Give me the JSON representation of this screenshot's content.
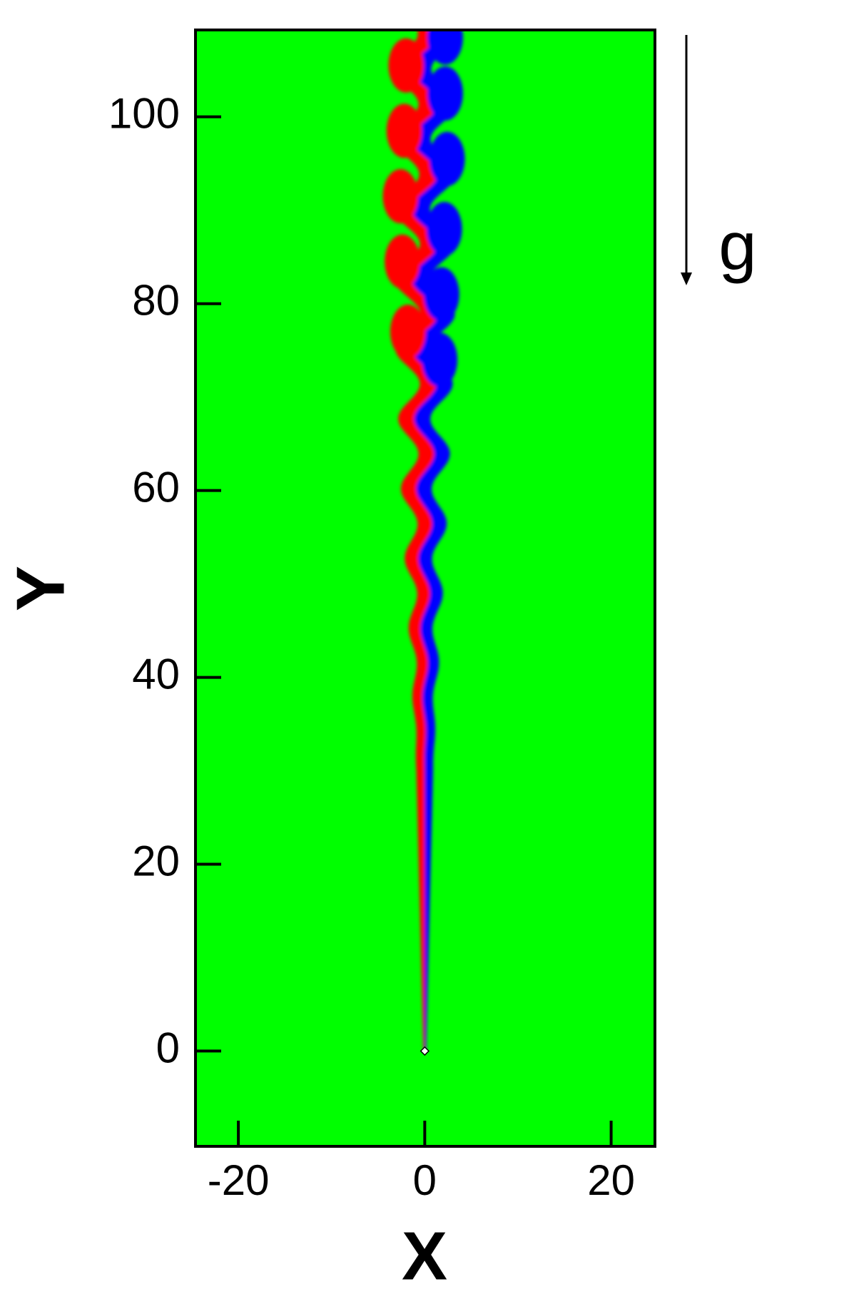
{
  "chart_data": {
    "type": "contour",
    "xlabel": "X",
    "ylabel": "Y",
    "annotation": "g",
    "xlim": [
      -24.6,
      24.7
    ],
    "ylim": [
      -10.2,
      109.3
    ],
    "xticks": [
      -20,
      0,
      20
    ],
    "yticks": [
      0,
      20,
      40,
      60,
      80,
      100
    ],
    "background_color": "#00ff00",
    "positive_color": "#ff0000",
    "negative_color": "#0000ff"
  }
}
